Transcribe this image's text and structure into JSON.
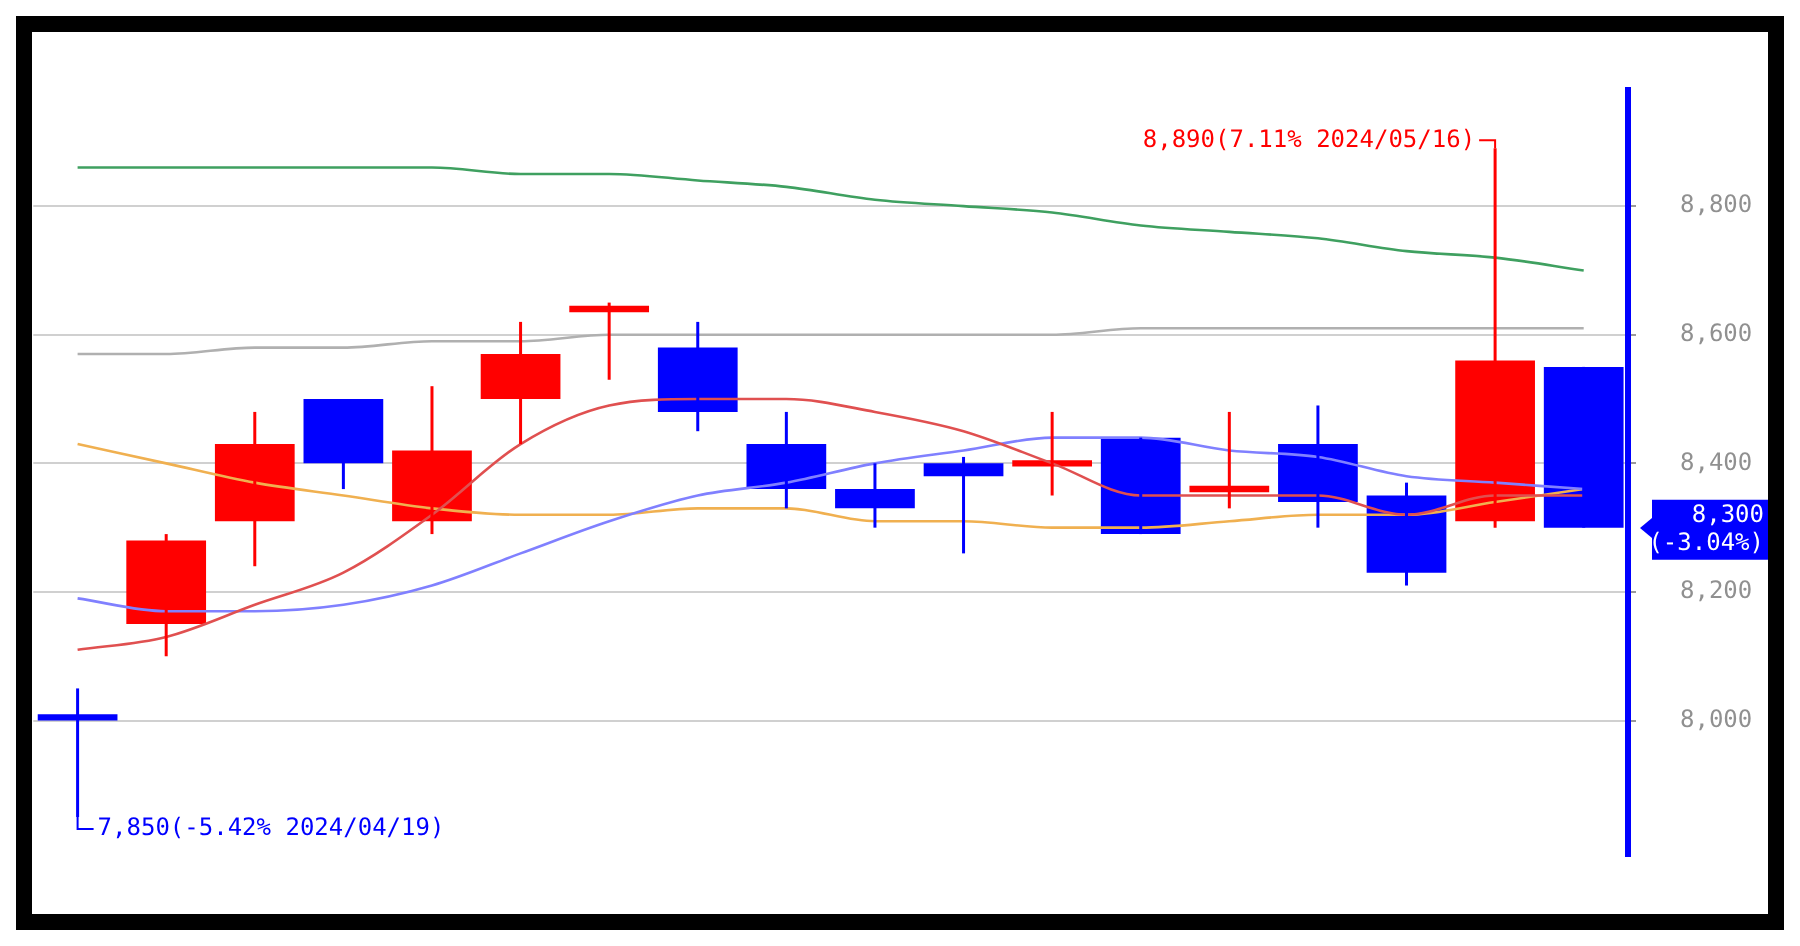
{
  "chart_data": {
    "type": "candlestick",
    "categories": [
      null,
      null,
      null,
      null,
      null,
      null,
      null,
      null,
      null,
      null,
      null,
      null,
      null,
      null,
      null,
      null,
      null,
      null
    ],
    "ohlc": [
      [
        8010,
        8050,
        7850,
        8000
      ],
      [
        8150,
        8290,
        8100,
        8280
      ],
      [
        8310,
        8480,
        8240,
        8430
      ],
      [
        8500,
        8500,
        8360,
        8400
      ],
      [
        8310,
        8520,
        8290,
        8420
      ],
      [
        8500,
        8620,
        8430,
        8570
      ],
      [
        8635,
        8650,
        8530,
        8645
      ],
      [
        8580,
        8620,
        8450,
        8480
      ],
      [
        8430,
        8480,
        8330,
        8360
      ],
      [
        8360,
        8400,
        8300,
        8330
      ],
      [
        8400,
        8410,
        8260,
        8380
      ],
      [
        8395,
        8480,
        8350,
        8405
      ],
      [
        8440,
        8440,
        8290,
        8290
      ],
      [
        8355,
        8480,
        8330,
        8365
      ],
      [
        8430,
        8490,
        8300,
        8340
      ],
      [
        8350,
        8370,
        8210,
        8230
      ],
      [
        8310,
        8890,
        8300,
        8560
      ],
      [
        8550,
        8550,
        8300,
        8300
      ]
    ],
    "colors": [
      "#0000ff",
      "#ff0000",
      "#ff0000",
      "#0000ff",
      "#ff0000",
      "#ff0000",
      "#ff0000",
      "#0000ff",
      "#0000ff",
      "#0000ff",
      "#0000ff",
      "#ff0000",
      "#0000ff",
      "#ff0000",
      "#0000ff",
      "#0000ff",
      "#ff0000",
      "#0000ff"
    ],
    "series": [
      {
        "type": "line",
        "color": "#3fa060",
        "values": [
          8860,
          8860,
          8860,
          8860,
          8860,
          8850,
          8850,
          8840,
          8830,
          8810,
          8800,
          8790,
          8770,
          8760,
          8750,
          8730,
          8720,
          8700
        ]
      },
      {
        "type": "line",
        "color": "#b0b0b0",
        "values": [
          8570,
          8570,
          8580,
          8580,
          8590,
          8590,
          8600,
          8600,
          8600,
          8600,
          8600,
          8600,
          8610,
          8610,
          8610,
          8610,
          8610,
          8610
        ]
      },
      {
        "type": "line",
        "color": "#e05050",
        "values": [
          8110,
          8130,
          8180,
          8230,
          8320,
          8430,
          8490,
          8500,
          8500,
          8480,
          8450,
          8400,
          8350,
          8350,
          8350,
          8320,
          8350,
          8350
        ]
      },
      {
        "type": "line",
        "color": "#8080ff",
        "values": [
          8190,
          8170,
          8170,
          8180,
          8210,
          8260,
          8310,
          8350,
          8370,
          8400,
          8420,
          8440,
          8440,
          8420,
          8410,
          8380,
          8370,
          8360
        ]
      },
      {
        "type": "line",
        "color": "#f0b050",
        "values": [
          8430,
          8400,
          8370,
          8350,
          8330,
          8320,
          8320,
          8330,
          8330,
          8310,
          8310,
          8300,
          8300,
          8310,
          8320,
          8320,
          8340,
          8360
        ]
      }
    ],
    "ylim": [
      7790,
      8980
    ],
    "yticks": [
      {
        "value": 8000,
        "label": "8,000"
      },
      {
        "value": 8200,
        "label": "8,200"
      },
      {
        "value": 8400,
        "label": "8,400"
      },
      {
        "value": 8600,
        "label": "8,600"
      },
      {
        "value": 8800,
        "label": "8,800"
      }
    ],
    "grid": "y",
    "legend": false,
    "marker": "none",
    "line_style": "solid",
    "annotations": [
      "8,890(7.11% 2024/05/16)",
      "7,850(-5.42% 2024/04/19)",
      "8,300 (-3.04%)"
    ]
  }
}
